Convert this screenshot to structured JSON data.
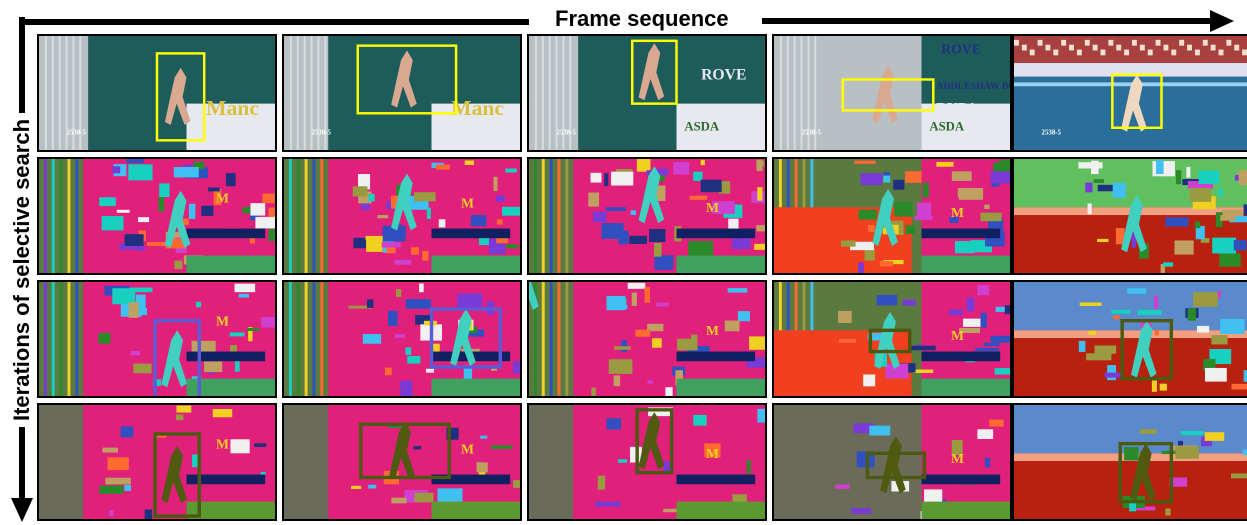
{
  "labels": {
    "frame_sequence": "Frame sequence",
    "iterations": "Iterations of selective search"
  },
  "rows": [
    {
      "kind": "original"
    },
    {
      "kind": "initial-segmentation"
    },
    {
      "kind": "intermediate-merging"
    },
    {
      "kind": "final-merging"
    }
  ],
  "columns": 5,
  "colors": {
    "bbox_original": "#ffff00",
    "bbox_iter1": "#5b5bd6",
    "bbox_iter2": "#4a5a10",
    "magenta": "#e0207a",
    "teal": "#1e5c5c",
    "olive": "#6b6b5a",
    "red": "#b82010",
    "blue": "#5a8acb",
    "water": "#2a6f9a"
  },
  "cell_text": {
    "manchester": "Manc",
    "rovers": "ROVE",
    "asda": "ASDA",
    "bupa": "BUPA",
    "addleshaw": "ADDLESHAW BOOTH",
    "small_id": "2538-5"
  }
}
